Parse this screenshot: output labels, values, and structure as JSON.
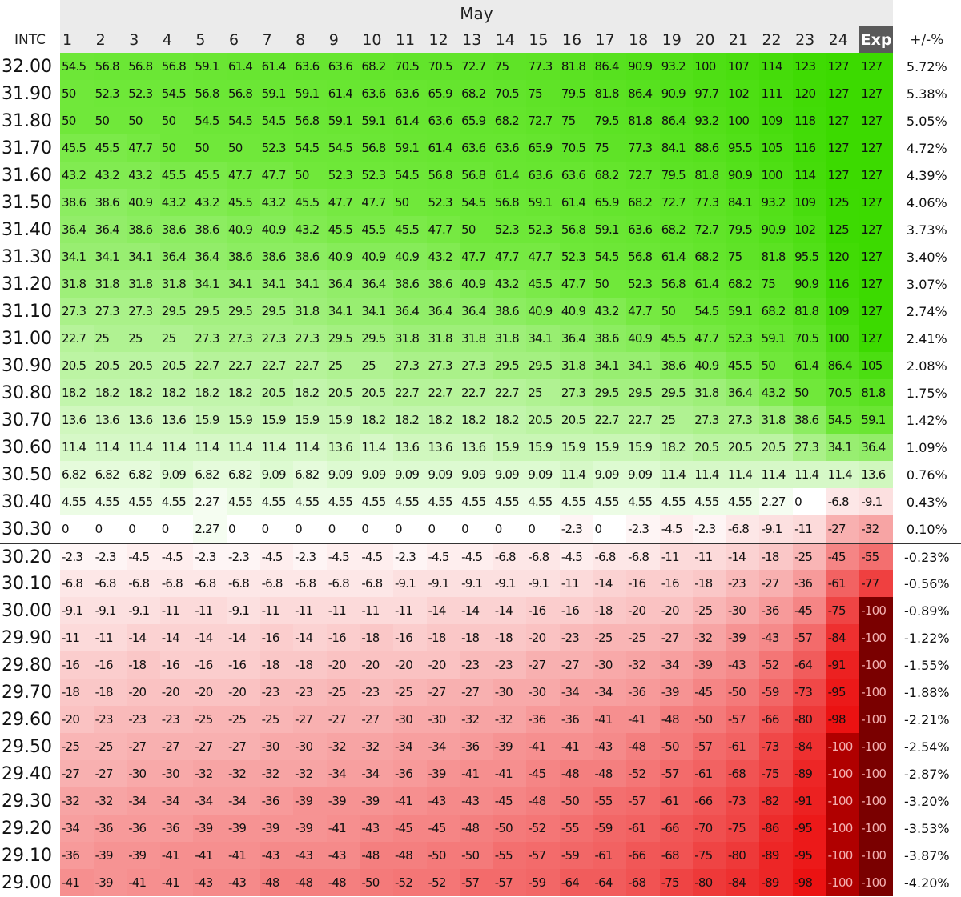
{
  "header": {
    "month": "May",
    "corner": "INTC",
    "days": [
      "1",
      "2",
      "3",
      "4",
      "5",
      "6",
      "7",
      "8",
      "9",
      "10",
      "11",
      "12",
      "13",
      "14",
      "15",
      "16",
      "17",
      "18",
      "19",
      "20",
      "21",
      "22",
      "23",
      "24",
      "Exp"
    ],
    "change": "+/-%"
  },
  "rows": [
    {
      "price": "32.00",
      "cells": [
        54.5,
        56.8,
        56.8,
        56.8,
        59.1,
        61.4,
        61.4,
        63.6,
        63.6,
        68.2,
        70.5,
        70.5,
        72.7,
        75,
        77.3,
        81.8,
        86.4,
        90.9,
        93.2,
        100,
        107,
        114,
        123,
        127,
        127
      ],
      "change": "5.72%"
    },
    {
      "price": "31.90",
      "cells": [
        50,
        52.3,
        52.3,
        54.5,
        56.8,
        56.8,
        59.1,
        59.1,
        61.4,
        63.6,
        63.6,
        65.9,
        68.2,
        70.5,
        75,
        79.5,
        81.8,
        86.4,
        90.9,
        97.7,
        102,
        111,
        120,
        127,
        127
      ],
      "change": "5.38%"
    },
    {
      "price": "31.80",
      "cells": [
        50,
        50,
        50,
        50,
        54.5,
        54.5,
        54.5,
        56.8,
        59.1,
        59.1,
        61.4,
        63.6,
        65.9,
        68.2,
        72.7,
        75,
        79.5,
        81.8,
        86.4,
        93.2,
        100,
        109,
        118,
        127,
        127
      ],
      "change": "5.05%"
    },
    {
      "price": "31.70",
      "cells": [
        45.5,
        45.5,
        47.7,
        50,
        50,
        50,
        52.3,
        54.5,
        54.5,
        56.8,
        59.1,
        61.4,
        63.6,
        63.6,
        65.9,
        70.5,
        75,
        77.3,
        84.1,
        88.6,
        95.5,
        105,
        116,
        127,
        127
      ],
      "change": "4.72%"
    },
    {
      "price": "31.60",
      "cells": [
        43.2,
        43.2,
        43.2,
        45.5,
        45.5,
        47.7,
        47.7,
        50,
        52.3,
        52.3,
        54.5,
        56.8,
        56.8,
        61.4,
        63.6,
        63.6,
        68.2,
        72.7,
        79.5,
        81.8,
        90.9,
        100,
        114,
        127,
        127
      ],
      "change": "4.39%"
    },
    {
      "price": "31.50",
      "cells": [
        38.6,
        38.6,
        40.9,
        43.2,
        43.2,
        45.5,
        43.2,
        45.5,
        47.7,
        47.7,
        50,
        52.3,
        54.5,
        56.8,
        59.1,
        61.4,
        65.9,
        68.2,
        72.7,
        77.3,
        84.1,
        93.2,
        109,
        125,
        127
      ],
      "change": "4.06%"
    },
    {
      "price": "31.40",
      "cells": [
        36.4,
        36.4,
        38.6,
        38.6,
        38.6,
        40.9,
        40.9,
        43.2,
        45.5,
        45.5,
        45.5,
        47.7,
        50,
        52.3,
        52.3,
        56.8,
        59.1,
        63.6,
        68.2,
        72.7,
        79.5,
        90.9,
        102,
        125,
        127
      ],
      "change": "3.73%"
    },
    {
      "price": "31.30",
      "cells": [
        34.1,
        34.1,
        34.1,
        36.4,
        36.4,
        38.6,
        38.6,
        38.6,
        40.9,
        40.9,
        40.9,
        43.2,
        47.7,
        47.7,
        47.7,
        52.3,
        54.5,
        56.8,
        61.4,
        68.2,
        75,
        81.8,
        95.5,
        120,
        127
      ],
      "change": "3.40%"
    },
    {
      "price": "31.20",
      "cells": [
        31.8,
        31.8,
        31.8,
        31.8,
        34.1,
        34.1,
        34.1,
        34.1,
        36.4,
        36.4,
        38.6,
        38.6,
        40.9,
        43.2,
        45.5,
        47.7,
        50,
        52.3,
        56.8,
        61.4,
        68.2,
        75,
        90.9,
        116,
        127
      ],
      "change": "3.07%"
    },
    {
      "price": "31.10",
      "cells": [
        27.3,
        27.3,
        27.3,
        29.5,
        29.5,
        29.5,
        29.5,
        31.8,
        34.1,
        34.1,
        36.4,
        36.4,
        36.4,
        38.6,
        40.9,
        40.9,
        43.2,
        47.7,
        50,
        54.5,
        59.1,
        68.2,
        81.8,
        109,
        127
      ],
      "change": "2.74%"
    },
    {
      "price": "31.00",
      "cells": [
        22.7,
        25,
        25,
        25,
        27.3,
        27.3,
        27.3,
        27.3,
        29.5,
        29.5,
        31.8,
        31.8,
        31.8,
        31.8,
        34.1,
        36.4,
        38.6,
        40.9,
        45.5,
        47.7,
        52.3,
        59.1,
        70.5,
        100,
        127
      ],
      "change": "2.41%"
    },
    {
      "price": "30.90",
      "cells": [
        20.5,
        20.5,
        20.5,
        20.5,
        22.7,
        22.7,
        22.7,
        22.7,
        25,
        25,
        27.3,
        27.3,
        27.3,
        29.5,
        29.5,
        31.8,
        34.1,
        34.1,
        38.6,
        40.9,
        45.5,
        50,
        61.4,
        86.4,
        105
      ],
      "change": "2.08%"
    },
    {
      "price": "30.80",
      "cells": [
        18.2,
        18.2,
        18.2,
        18.2,
        18.2,
        18.2,
        20.5,
        18.2,
        20.5,
        20.5,
        22.7,
        22.7,
        22.7,
        22.7,
        25,
        27.3,
        29.5,
        29.5,
        29.5,
        31.8,
        36.4,
        43.2,
        50,
        70.5,
        81.8
      ],
      "change": "1.75%"
    },
    {
      "price": "30.70",
      "cells": [
        13.6,
        13.6,
        13.6,
        13.6,
        15.9,
        15.9,
        15.9,
        15.9,
        15.9,
        18.2,
        18.2,
        18.2,
        18.2,
        18.2,
        20.5,
        20.5,
        22.7,
        22.7,
        25,
        27.3,
        27.3,
        31.8,
        38.6,
        54.5,
        59.1
      ],
      "change": "1.42%"
    },
    {
      "price": "30.60",
      "cells": [
        11.4,
        11.4,
        11.4,
        11.4,
        11.4,
        11.4,
        11.4,
        11.4,
        13.6,
        11.4,
        13.6,
        13.6,
        13.6,
        15.9,
        15.9,
        15.9,
        15.9,
        15.9,
        18.2,
        20.5,
        20.5,
        20.5,
        27.3,
        34.1,
        36.4
      ],
      "change": "1.09%"
    },
    {
      "price": "30.50",
      "cells": [
        6.82,
        6.82,
        6.82,
        9.09,
        6.82,
        6.82,
        9.09,
        6.82,
        9.09,
        9.09,
        9.09,
        9.09,
        9.09,
        9.09,
        9.09,
        11.4,
        9.09,
        9.09,
        11.4,
        11.4,
        11.4,
        11.4,
        11.4,
        11.4,
        13.6
      ],
      "change": "0.76%"
    },
    {
      "price": "30.40",
      "cells": [
        4.55,
        4.55,
        4.55,
        4.55,
        2.27,
        4.55,
        4.55,
        4.55,
        4.55,
        4.55,
        4.55,
        4.55,
        4.55,
        4.55,
        4.55,
        4.55,
        4.55,
        4.55,
        4.55,
        4.55,
        4.55,
        2.27,
        0,
        -6.8,
        -9.1
      ],
      "change": "0.43%"
    },
    {
      "price": "30.30",
      "cells": [
        0,
        0,
        0,
        0,
        2.27,
        0,
        0,
        0,
        0,
        0,
        0,
        0,
        0,
        0,
        0,
        -2.3,
        0,
        -2.3,
        -4.5,
        -2.3,
        -6.8,
        -9.1,
        -11,
        -27,
        -32
      ],
      "change": "0.10%"
    },
    {
      "price": "30.20",
      "cells": [
        -2.3,
        -2.3,
        -4.5,
        -4.5,
        -2.3,
        -2.3,
        -4.5,
        -2.3,
        -4.5,
        -4.5,
        -2.3,
        -4.5,
        -4.5,
        -6.8,
        -6.8,
        -4.5,
        -6.8,
        -6.8,
        -11,
        -11,
        -14,
        -18,
        -25,
        -45,
        -55
      ],
      "change": "-0.23%"
    },
    {
      "price": "30.10",
      "cells": [
        -6.8,
        -6.8,
        -6.8,
        -6.8,
        -6.8,
        -6.8,
        -6.8,
        -6.8,
        -6.8,
        -6.8,
        -9.1,
        -9.1,
        -9.1,
        -9.1,
        -9.1,
        -11,
        -14,
        -16,
        -16,
        -18,
        -23,
        -27,
        -36,
        -61,
        -77
      ],
      "change": "-0.56%"
    },
    {
      "price": "30.00",
      "cells": [
        -9.1,
        -9.1,
        -9.1,
        -11,
        -11,
        -9.1,
        -11,
        -11,
        -11,
        -11,
        -11,
        -14,
        -14,
        -14,
        -16,
        -16,
        -18,
        -20,
        -20,
        -25,
        -30,
        -36,
        -45,
        -75,
        -100
      ],
      "change": "-0.89%"
    },
    {
      "price": "29.90",
      "cells": [
        -11,
        -11,
        -14,
        -14,
        -14,
        -14,
        -16,
        -14,
        -16,
        -18,
        -16,
        -18,
        -18,
        -18,
        -20,
        -23,
        -25,
        -25,
        -27,
        -32,
        -39,
        -43,
        -57,
        -84,
        -100
      ],
      "change": "-1.22%"
    },
    {
      "price": "29.80",
      "cells": [
        -16,
        -16,
        -18,
        -16,
        -16,
        -16,
        -18,
        -18,
        -20,
        -20,
        -20,
        -20,
        -23,
        -23,
        -27,
        -27,
        -30,
        -32,
        -34,
        -39,
        -43,
        -52,
        -64,
        -91,
        -100
      ],
      "change": "-1.55%"
    },
    {
      "price": "29.70",
      "cells": [
        -18,
        -18,
        -20,
        -20,
        -20,
        -20,
        -23,
        -23,
        -25,
        -23,
        -25,
        -27,
        -27,
        -30,
        -30,
        -34,
        -34,
        -36,
        -39,
        -45,
        -50,
        -59,
        -73,
        -95,
        -100
      ],
      "change": "-1.88%"
    },
    {
      "price": "29.60",
      "cells": [
        -20,
        -23,
        -23,
        -23,
        -25,
        -25,
        -25,
        -27,
        -27,
        -27,
        -30,
        -30,
        -32,
        -32,
        -36,
        -36,
        -41,
        -41,
        -48,
        -50,
        -57,
        -66,
        -80,
        -98,
        -100
      ],
      "change": "-2.21%"
    },
    {
      "price": "29.50",
      "cells": [
        -25,
        -25,
        -27,
        -27,
        -27,
        -27,
        -30,
        -30,
        -32,
        -32,
        -34,
        -34,
        -36,
        -39,
        -41,
        -41,
        -43,
        -48,
        -50,
        -57,
        -61,
        -73,
        -84,
        -100,
        -100
      ],
      "change": "-2.54%"
    },
    {
      "price": "29.40",
      "cells": [
        -27,
        -27,
        -30,
        -30,
        -32,
        -32,
        -32,
        -32,
        -34,
        -34,
        -36,
        -39,
        -41,
        -41,
        -45,
        -48,
        -48,
        -52,
        -57,
        -61,
        -68,
        -75,
        -89,
        -100,
        -100
      ],
      "change": "-2.87%"
    },
    {
      "price": "29.30",
      "cells": [
        -32,
        -32,
        -34,
        -34,
        -34,
        -34,
        -36,
        -39,
        -39,
        -39,
        -41,
        -43,
        -43,
        -45,
        -48,
        -50,
        -55,
        -57,
        -61,
        -66,
        -73,
        -82,
        -91,
        -100,
        -100
      ],
      "change": "-3.20%"
    },
    {
      "price": "29.20",
      "cells": [
        -34,
        -36,
        -36,
        -36,
        -39,
        -39,
        -39,
        -39,
        -41,
        -43,
        -45,
        -45,
        -48,
        -50,
        -52,
        -55,
        -59,
        -61,
        -66,
        -70,
        -75,
        -86,
        -95,
        -100,
        -100
      ],
      "change": "-3.53%"
    },
    {
      "price": "29.10",
      "cells": [
        -36,
        -39,
        -39,
        -41,
        -41,
        -41,
        -43,
        -43,
        -43,
        -48,
        -48,
        -50,
        -50,
        -55,
        -57,
        -59,
        -61,
        -66,
        -68,
        -75,
        -80,
        -89,
        -95,
        -100,
        -100
      ],
      "change": "-3.87%"
    },
    {
      "price": "29.00",
      "cells": [
        -41,
        -39,
        -41,
        -41,
        -43,
        -43,
        -48,
        -48,
        -48,
        -50,
        -52,
        -52,
        -57,
        -57,
        -59,
        -64,
        -64,
        -68,
        -75,
        -80,
        -84,
        -89,
        -98,
        -100,
        -100
      ],
      "change": "-4.20%"
    }
  ]
}
